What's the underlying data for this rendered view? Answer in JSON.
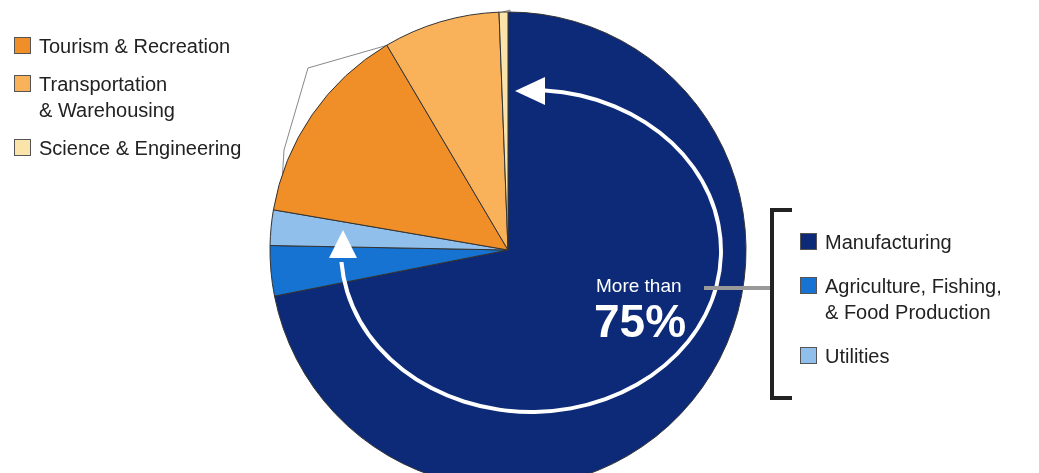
{
  "chart_data": {
    "type": "pie",
    "categories": [
      "Manufacturing",
      "Agriculture, Fishing, & Food Production",
      "Utilities",
      "Tourism & Recreation",
      "Transportation & Warehousing",
      "Science & Engineering"
    ],
    "values": [
      71.9,
      3.4,
      2.4,
      13.8,
      7.9,
      0.6
    ],
    "colors": [
      "#0c2a78",
      "#1673d2",
      "#8fbfea",
      "#f08f28",
      "#f9b259",
      "#fbe4aa"
    ],
    "annotations": [
      "More than",
      "75%"
    ],
    "legend": "right"
  }
}
